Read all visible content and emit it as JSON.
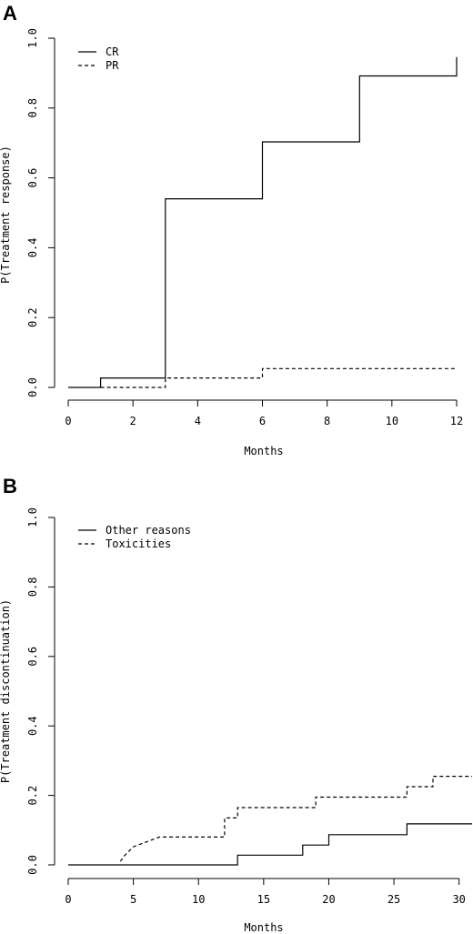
{
  "chart_data": [
    {
      "panel": "A",
      "type": "line",
      "xlabel": "Months",
      "ylabel": "P(Treatment response)",
      "xlim": [
        0,
        12
      ],
      "ylim": [
        0,
        1
      ],
      "xticks": [
        0,
        2,
        4,
        6,
        8,
        10,
        12
      ],
      "yticks": [
        0.0,
        0.2,
        0.4,
        0.6,
        0.8,
        1.0
      ],
      "ytick_labels": [
        "0.0",
        "0.2",
        "0.4",
        "0.6",
        "0.8",
        "1.0"
      ],
      "legend_position": "top-left",
      "series": [
        {
          "name": "CR",
          "linestyle": "solid",
          "x": [
            0,
            1,
            1,
            3,
            3,
            6,
            6,
            9,
            9,
            12,
            12
          ],
          "y": [
            0,
            0,
            0.027,
            0.027,
            0.54,
            0.54,
            0.703,
            0.703,
            0.892,
            0.892,
            0.946
          ]
        },
        {
          "name": "PR",
          "linestyle": "dashed",
          "x": [
            1,
            3,
            3,
            6,
            6,
            12
          ],
          "y": [
            0,
            0,
            0.027,
            0.027,
            0.054,
            0.054
          ]
        }
      ]
    },
    {
      "panel": "B",
      "type": "line",
      "xlabel": "Months",
      "ylabel": "P(Treatment discontinuation)",
      "xlim": [
        0,
        31
      ],
      "ylim": [
        0,
        1
      ],
      "xticks": [
        0,
        5,
        10,
        15,
        20,
        25,
        30
      ],
      "yticks": [
        0.0,
        0.2,
        0.4,
        0.6,
        0.8,
        1.0
      ],
      "ytick_labels": [
        "0.0",
        "0.2",
        "0.4",
        "0.6",
        "0.8",
        "1.0"
      ],
      "legend_position": "top-left",
      "series": [
        {
          "name": "Other reasons",
          "linestyle": "solid",
          "x": [
            0,
            13,
            13,
            18,
            18,
            20,
            20,
            26,
            26,
            31
          ],
          "y": [
            0,
            0,
            0.028,
            0.028,
            0.057,
            0.057,
            0.087,
            0.087,
            0.118,
            0.118
          ]
        },
        {
          "name": "Toxicities",
          "linestyle": "dashed",
          "x": [
            4,
            4,
            4.3,
            4.3,
            5,
            5,
            7,
            7,
            12,
            12,
            13,
            13,
            19,
            19,
            26,
            26,
            28,
            28,
            31
          ],
          "y": [
            0.01,
            0.01,
            0.026,
            0.026,
            0.052,
            0.052,
            0.08,
            0.08,
            0.08,
            0.135,
            0.135,
            0.165,
            0.165,
            0.195,
            0.195,
            0.225,
            0.225,
            0.255,
            0.255
          ]
        }
      ]
    }
  ]
}
